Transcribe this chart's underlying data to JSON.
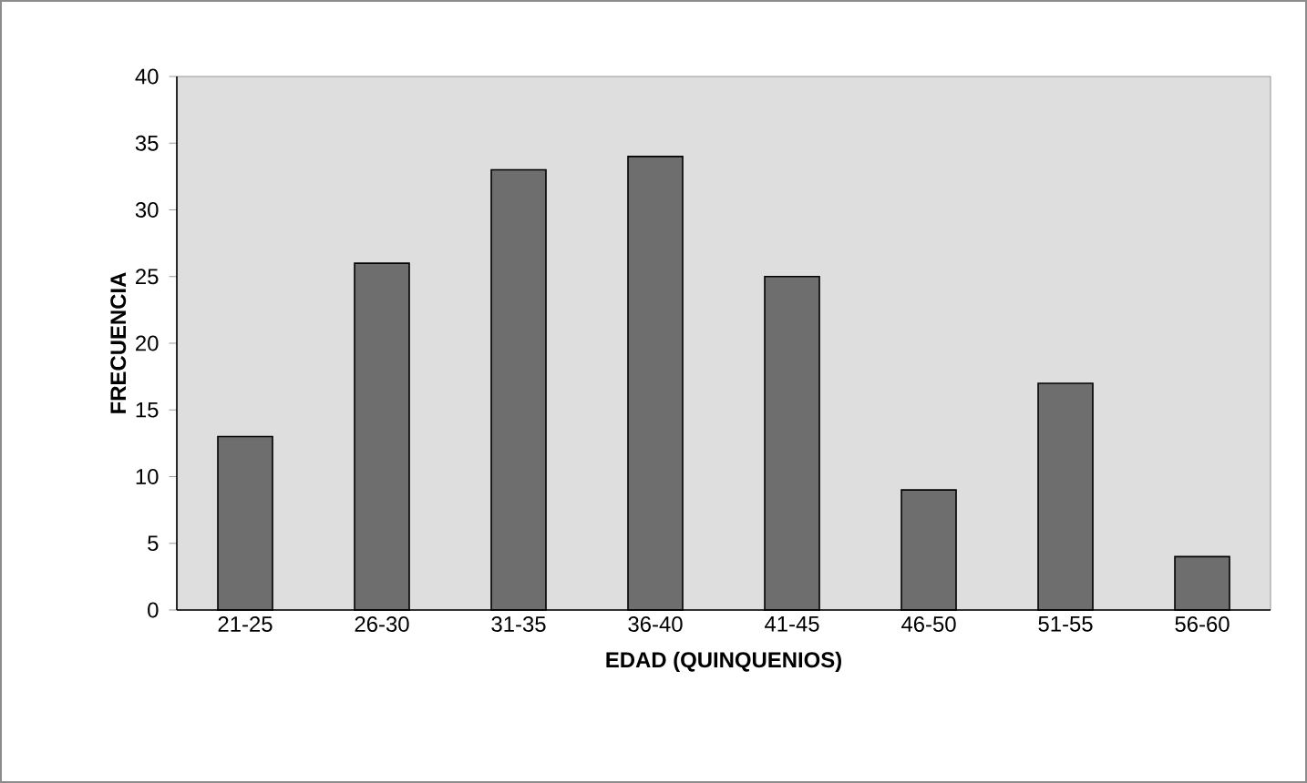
{
  "chart_data": {
    "type": "bar",
    "xlabel": "EDAD (QUINQUENIOS)",
    "ylabel": "FRECUENCIA",
    "categories": [
      "21-25",
      "26-30",
      "31-35",
      "36-40",
      "41-45",
      "46-50",
      "51-55",
      "56-60"
    ],
    "values": [
      13,
      26,
      33,
      34,
      25,
      9,
      17,
      4
    ],
    "color": "#6e6e6e",
    "ylim": [
      0,
      40
    ],
    "yticks": [
      0,
      5,
      10,
      15,
      20,
      25,
      30,
      35,
      40
    ]
  }
}
